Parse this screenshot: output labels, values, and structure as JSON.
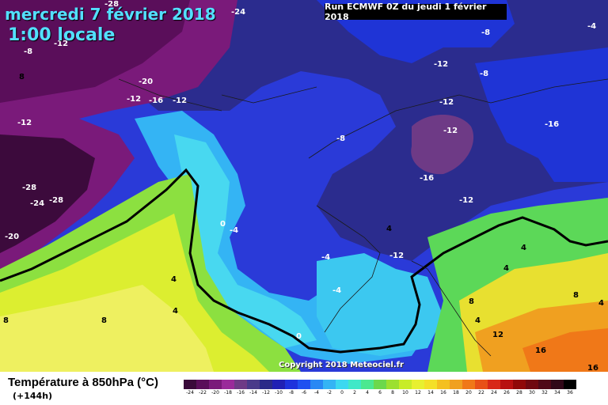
{
  "header": {
    "date": "mercredi 7 février 2018",
    "time": "1:00 locale",
    "run": "Run ECMWF 0Z du jeudi 1 février 2018"
  },
  "copyright": "Copyright 2018 Meteociel.fr",
  "footer": {
    "title": "Température à 850hPa (°C)",
    "subtitle": "(+144h)"
  },
  "colors": {
    "deep_purple": "#3c0a3c",
    "purple": "#7a1a7a",
    "navy": "#2a2a88",
    "blue": "#1e32dc",
    "cyan": "#3cd8f0",
    "green": "#6cd84c",
    "yellow": "#e8f030",
    "orange": "#f0a020"
  },
  "scale": [
    {
      "label": "-24",
      "color": "#3a0a3a"
    },
    {
      "label": "-22",
      "color": "#5a0e5a"
    },
    {
      "label": "-20",
      "color": "#7a1a7a"
    },
    {
      "label": "-18",
      "color": "#9a2a9a"
    },
    {
      "label": "-16",
      "color": "#6e3a86"
    },
    {
      "label": "-14",
      "color": "#4a3a8a"
    },
    {
      "label": "-12",
      "color": "#2a2a88"
    },
    {
      "label": "-10",
      "color": "#2020b4"
    },
    {
      "label": "-8",
      "color": "#1e32dc"
    },
    {
      "label": "-6",
      "color": "#2050f0"
    },
    {
      "label": "-4",
      "color": "#2888f4"
    },
    {
      "label": "-2",
      "color": "#34b4f4"
    },
    {
      "label": "0",
      "color": "#3cd8f0"
    },
    {
      "label": "2",
      "color": "#40e8c8"
    },
    {
      "label": "4",
      "color": "#4ce890"
    },
    {
      "label": "6",
      "color": "#6cd84c"
    },
    {
      "label": "8",
      "color": "#9ce030"
    },
    {
      "label": "10",
      "color": "#c8ec28"
    },
    {
      "label": "12",
      "color": "#e8f030"
    },
    {
      "label": "14",
      "color": "#f4e028"
    },
    {
      "label": "16",
      "color": "#f4c020"
    },
    {
      "label": "18",
      "color": "#f0a020"
    },
    {
      "label": "20",
      "color": "#f07818"
    },
    {
      "label": "22",
      "color": "#e85018"
    },
    {
      "label": "24",
      "color": "#d82818"
    },
    {
      "label": "26",
      "color": "#b81010"
    },
    {
      "label": "28",
      "color": "#900808"
    },
    {
      "label": "30",
      "color": "#700810"
    },
    {
      "label": "32",
      "color": "#500818"
    },
    {
      "label": "34",
      "color": "#300818"
    },
    {
      "label": "36",
      "color": "#000000"
    }
  ],
  "map_labels": [
    "-24",
    "-8",
    "-12",
    "-8",
    "-4",
    "-28",
    "-20",
    "-12",
    "-16",
    "-12",
    "-8",
    "-12",
    "-12",
    "-16",
    "-12",
    "-8",
    "-12",
    "-16",
    "-28",
    "-24",
    "-28",
    "-20",
    "-12",
    "0",
    "-4",
    "-4",
    "-4",
    "-12",
    "4",
    "4",
    "8",
    "8",
    "4",
    "0",
    "8",
    "4",
    "4",
    "4",
    "8",
    "4",
    "12",
    "16",
    "16",
    "8"
  ]
}
